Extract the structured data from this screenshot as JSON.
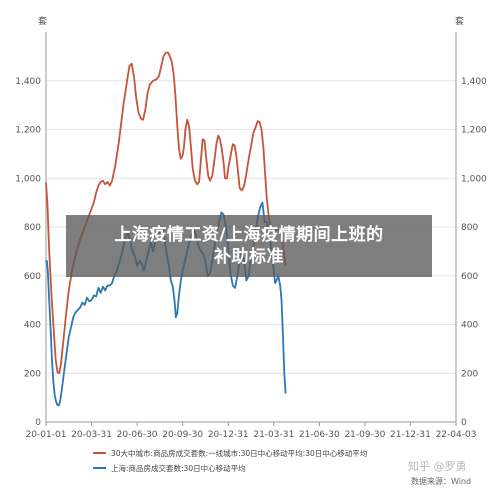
{
  "banner": {
    "line1": "上海疫情工资/上海疫情期间上班的",
    "line2": "补助标准"
  },
  "watermark": "知乎 @罗勇",
  "colors": {
    "series1": "#c6543a",
    "series2": "#2b78b5",
    "grid": "#e6e6e6",
    "axis": "#9a9a9a"
  },
  "chart_data": {
    "type": "line",
    "unit_left": "套",
    "unit_right": "套",
    "yticks": [
      "0",
      "200",
      "400",
      "600",
      "800",
      "1,000",
      "1,200",
      "1,400"
    ],
    "ylim": [
      0,
      1600
    ],
    "xticks": [
      "20-01-01",
      "20-03-31",
      "20-06-30",
      "20-09-30",
      "20-12-31",
      "21-03-31",
      "21-06-30",
      "21-09-30",
      "21-12-31",
      "22-04-03"
    ],
    "grid": true,
    "legend_position": "bottom-left",
    "source": "数据来源：Wind",
    "series": [
      {
        "name": "30大中城市:商品房成交套数:一线城市:30日中心移动平均:30日中心移动平均",
        "color_key": "series1",
        "points": [
          [
            0,
            980
          ],
          [
            0.03,
            900
          ],
          [
            0.07,
            700
          ],
          [
            0.12,
            520
          ],
          [
            0.17,
            380
          ],
          [
            0.21,
            260
          ],
          [
            0.25,
            205
          ],
          [
            0.29,
            200
          ],
          [
            0.33,
            240
          ],
          [
            0.38,
            330
          ],
          [
            0.44,
            440
          ],
          [
            0.5,
            540
          ],
          [
            0.58,
            630
          ],
          [
            0.67,
            700
          ],
          [
            0.75,
            750
          ],
          [
            0.85,
            800
          ],
          [
            0.95,
            850
          ],
          [
            1.05,
            900
          ],
          [
            1.1,
            940
          ],
          [
            1.15,
            970
          ],
          [
            1.2,
            985
          ],
          [
            1.25,
            990
          ],
          [
            1.3,
            975
          ],
          [
            1.35,
            985
          ],
          [
            1.4,
            970
          ],
          [
            1.45,
            990
          ],
          [
            1.52,
            1050
          ],
          [
            1.6,
            1150
          ],
          [
            1.7,
            1300
          ],
          [
            1.78,
            1400
          ],
          [
            1.83,
            1460
          ],
          [
            1.88,
            1470
          ],
          [
            1.93,
            1420
          ],
          [
            1.98,
            1330
          ],
          [
            2.03,
            1270
          ],
          [
            2.08,
            1245
          ],
          [
            2.13,
            1240
          ],
          [
            2.18,
            1280
          ],
          [
            2.23,
            1350
          ],
          [
            2.28,
            1385
          ],
          [
            2.35,
            1400
          ],
          [
            2.42,
            1405
          ],
          [
            2.48,
            1420
          ],
          [
            2.53,
            1460
          ],
          [
            2.58,
            1500
          ],
          [
            2.63,
            1515
          ],
          [
            2.68,
            1515
          ],
          [
            2.72,
            1500
          ],
          [
            2.76,
            1480
          ],
          [
            2.8,
            1430
          ],
          [
            2.84,
            1340
          ],
          [
            2.88,
            1220
          ],
          [
            2.92,
            1120
          ],
          [
            2.96,
            1080
          ],
          [
            3.0,
            1095
          ],
          [
            3.03,
            1130
          ],
          [
            3.06,
            1200
          ],
          [
            3.1,
            1240
          ],
          [
            3.14,
            1215
          ],
          [
            3.18,
            1130
          ],
          [
            3.22,
            1040
          ],
          [
            3.27,
            990
          ],
          [
            3.32,
            975
          ],
          [
            3.36,
            985
          ],
          [
            3.4,
            1075
          ],
          [
            3.44,
            1160
          ],
          [
            3.48,
            1155
          ],
          [
            3.52,
            1075
          ],
          [
            3.56,
            1010
          ],
          [
            3.6,
            990
          ],
          [
            3.65,
            1010
          ],
          [
            3.7,
            1080
          ],
          [
            3.74,
            1140
          ],
          [
            3.78,
            1175
          ],
          [
            3.82,
            1160
          ],
          [
            3.86,
            1120
          ],
          [
            3.9,
            1060
          ],
          [
            3.93,
            1000
          ],
          [
            3.97,
            1000
          ],
          [
            4.0,
            1040
          ],
          [
            4.05,
            1090
          ],
          [
            4.1,
            1140
          ],
          [
            4.14,
            1135
          ],
          [
            4.18,
            1090
          ],
          [
            4.22,
            1020
          ],
          [
            4.25,
            960
          ],
          [
            4.3,
            950
          ],
          [
            4.35,
            970
          ],
          [
            4.4,
            1020
          ],
          [
            4.45,
            1080
          ],
          [
            4.5,
            1130
          ],
          [
            4.55,
            1185
          ],
          [
            4.6,
            1210
          ],
          [
            4.65,
            1235
          ],
          [
            4.69,
            1230
          ],
          [
            4.73,
            1200
          ],
          [
            4.77,
            1130
          ],
          [
            4.81,
            1020
          ],
          [
            4.85,
            910
          ],
          [
            4.9,
            830
          ],
          [
            4.95,
            790
          ],
          [
            5.0,
            780
          ],
          [
            5.05,
            790
          ],
          [
            5.1,
            790
          ],
          [
            5.15,
            775
          ],
          [
            5.19,
            740
          ],
          [
            5.23,
            680
          ],
          [
            5.26,
            645
          ]
        ]
      },
      {
        "name": "上海:商品房成交套数:30日中心移动平均",
        "color_key": "series2",
        "points": [
          [
            0,
            660
          ],
          [
            0.02,
            660
          ],
          [
            0.04,
            620
          ],
          [
            0.07,
            500
          ],
          [
            0.1,
            380
          ],
          [
            0.13,
            260
          ],
          [
            0.16,
            170
          ],
          [
            0.19,
            110
          ],
          [
            0.22,
            85
          ],
          [
            0.25,
            70
          ],
          [
            0.28,
            68
          ],
          [
            0.31,
            85
          ],
          [
            0.35,
            135
          ],
          [
            0.4,
            210
          ],
          [
            0.45,
            280
          ],
          [
            0.5,
            350
          ],
          [
            0.55,
            390
          ],
          [
            0.6,
            430
          ],
          [
            0.65,
            450
          ],
          [
            0.7,
            460
          ],
          [
            0.75,
            470
          ],
          [
            0.8,
            490
          ],
          [
            0.85,
            480
          ],
          [
            0.9,
            510
          ],
          [
            0.95,
            495
          ],
          [
            1.0,
            500
          ],
          [
            1.05,
            520
          ],
          [
            1.1,
            515
          ],
          [
            1.15,
            550
          ],
          [
            1.2,
            530
          ],
          [
            1.25,
            555
          ],
          [
            1.3,
            540
          ],
          [
            1.35,
            560
          ],
          [
            1.4,
            560
          ],
          [
            1.45,
            570
          ],
          [
            1.5,
            600
          ],
          [
            1.55,
            620
          ],
          [
            1.6,
            650
          ],
          [
            1.65,
            680
          ],
          [
            1.7,
            720
          ],
          [
            1.75,
            760
          ],
          [
            1.8,
            780
          ],
          [
            1.85,
            740
          ],
          [
            1.9,
            700
          ],
          [
            1.95,
            680
          ],
          [
            2.0,
            640
          ],
          [
            2.05,
            660
          ],
          [
            2.1,
            650
          ],
          [
            2.15,
            620
          ],
          [
            2.2,
            660
          ],
          [
            2.25,
            700
          ],
          [
            2.3,
            740
          ],
          [
            2.35,
            700
          ],
          [
            2.4,
            740
          ],
          [
            2.45,
            750
          ],
          [
            2.5,
            790
          ],
          [
            2.55,
            800
          ],
          [
            2.6,
            760
          ],
          [
            2.65,
            690
          ],
          [
            2.7,
            640
          ],
          [
            2.74,
            580
          ],
          [
            2.78,
            560
          ],
          [
            2.82,
            500
          ],
          [
            2.85,
            430
          ],
          [
            2.88,
            445
          ],
          [
            2.92,
            520
          ],
          [
            2.96,
            580
          ],
          [
            3.0,
            620
          ],
          [
            3.05,
            660
          ],
          [
            3.1,
            700
          ],
          [
            3.15,
            740
          ],
          [
            3.2,
            770
          ],
          [
            3.25,
            790
          ],
          [
            3.3,
            760
          ],
          [
            3.35,
            720
          ],
          [
            3.4,
            700
          ],
          [
            3.45,
            690
          ],
          [
            3.5,
            660
          ],
          [
            3.55,
            600
          ],
          [
            3.6,
            610
          ],
          [
            3.65,
            660
          ],
          [
            3.7,
            720
          ],
          [
            3.75,
            780
          ],
          [
            3.8,
            820
          ],
          [
            3.85,
            860
          ],
          [
            3.9,
            850
          ],
          [
            3.95,
            800
          ],
          [
            4.0,
            710
          ],
          [
            4.05,
            610
          ],
          [
            4.1,
            560
          ],
          [
            4.15,
            550
          ],
          [
            4.2,
            600
          ],
          [
            4.25,
            660
          ],
          [
            4.3,
            700
          ],
          [
            4.35,
            660
          ],
          [
            4.4,
            580
          ],
          [
            4.45,
            600
          ],
          [
            4.5,
            680
          ],
          [
            4.55,
            720
          ],
          [
            4.6,
            780
          ],
          [
            4.65,
            840
          ],
          [
            4.7,
            880
          ],
          [
            4.75,
            900
          ],
          [
            4.8,
            820
          ],
          [
            4.85,
            820
          ],
          [
            4.9,
            770
          ],
          [
            4.95,
            700
          ],
          [
            5.0,
            620
          ],
          [
            5.03,
            570
          ],
          [
            5.06,
            580
          ],
          [
            5.1,
            600
          ],
          [
            5.14,
            560
          ],
          [
            5.17,
            500
          ],
          [
            5.2,
            360
          ],
          [
            5.23,
            200
          ],
          [
            5.26,
            120
          ]
        ]
      }
    ]
  }
}
